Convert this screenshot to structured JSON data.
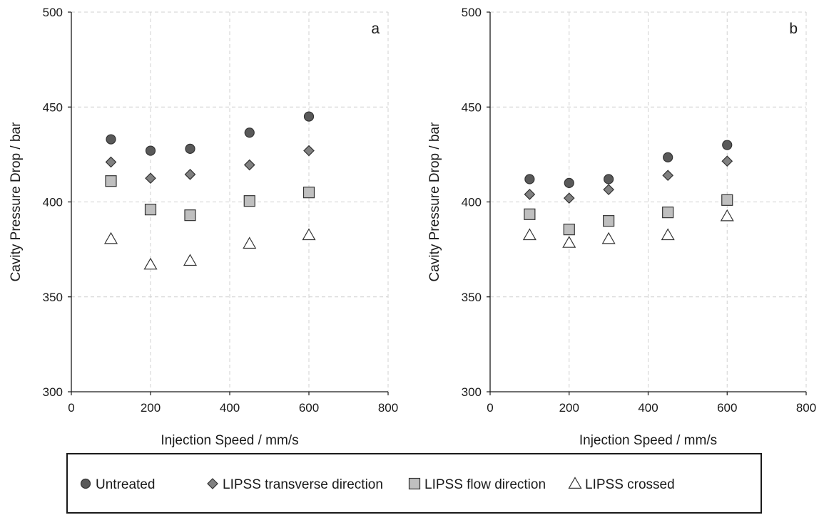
{
  "chart_data": [
    {
      "type": "scatter",
      "panel_label": "a",
      "xlabel": "Injection Speed / mm/s",
      "ylabel": "Cavity Pressure Drop / bar",
      "xlim": [
        0,
        800
      ],
      "ylim": [
        300,
        500
      ],
      "xticks": [
        0,
        200,
        400,
        600,
        800
      ],
      "yticks": [
        300,
        350,
        400,
        450,
        500
      ],
      "grid": true,
      "series": [
        {
          "name": "Untreated",
          "x": [
            100,
            200,
            300,
            450,
            600
          ],
          "y": [
            433,
            427,
            428,
            436.5,
            445
          ]
        },
        {
          "name": "LIPSS transverse direction",
          "x": [
            100,
            200,
            300,
            450,
            600
          ],
          "y": [
            421,
            412.5,
            414.5,
            419.5,
            427
          ]
        },
        {
          "name": "LIPSS flow direction",
          "x": [
            100,
            200,
            300,
            450,
            600
          ],
          "y": [
            411,
            396,
            393,
            400.5,
            405
          ]
        },
        {
          "name": "LIPSS crossed",
          "x": [
            100,
            200,
            300,
            450,
            600
          ],
          "y": [
            380.5,
            367,
            369,
            378,
            382.5
          ]
        }
      ]
    },
    {
      "type": "scatter",
      "panel_label": "b",
      "xlabel": "Injection Speed / mm/s",
      "ylabel": "Cavity Pressure Drop / bar",
      "xlim": [
        0,
        800
      ],
      "ylim": [
        300,
        500
      ],
      "xticks": [
        0,
        200,
        400,
        600,
        800
      ],
      "yticks": [
        300,
        350,
        400,
        450,
        500
      ],
      "grid": true,
      "series": [
        {
          "name": "Untreated",
          "x": [
            100,
            200,
            300,
            450,
            600
          ],
          "y": [
            412,
            410,
            412,
            423.5,
            430
          ]
        },
        {
          "name": "LIPSS transverse direction",
          "x": [
            100,
            200,
            300,
            450,
            600
          ],
          "y": [
            404,
            402,
            406.5,
            414,
            421.5
          ]
        },
        {
          "name": "LIPSS flow direction",
          "x": [
            100,
            200,
            300,
            450,
            600
          ],
          "y": [
            393.5,
            385.5,
            390,
            394.5,
            401
          ]
        },
        {
          "name": "LIPSS crossed",
          "x": [
            100,
            200,
            300,
            450,
            600
          ],
          "y": [
            382.5,
            378.5,
            380.5,
            382.5,
            392.5
          ]
        }
      ]
    }
  ],
  "legend": {
    "position": "bottom",
    "entries": [
      {
        "name": "Untreated",
        "marker": "circle",
        "color": "#595959"
      },
      {
        "name": "LIPSS transverse direction",
        "marker": "diamond",
        "color": "#808080"
      },
      {
        "name": "LIPSS flow direction",
        "marker": "square",
        "color": "#bfbfbf"
      },
      {
        "name": "LIPSS crossed",
        "marker": "triangle",
        "color": "#ffffff"
      }
    ]
  },
  "colors": {
    "marker_stroke": "#333333",
    "grid": "#d0d0d0",
    "axis": "#1a1a1a"
  }
}
